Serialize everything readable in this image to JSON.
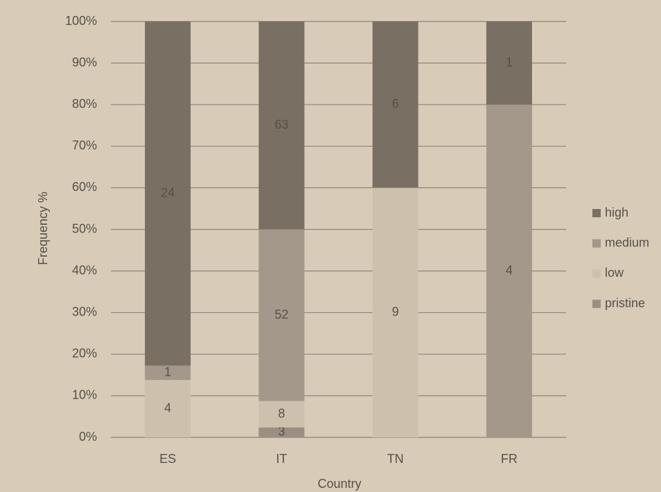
{
  "chart_data": {
    "type": "stacked100",
    "categories": [
      "ES",
      "IT",
      "TN",
      "FR"
    ],
    "series": [
      {
        "name": "pristine",
        "color": "#9a8f82",
        "values": [
          null,
          3,
          null,
          null
        ]
      },
      {
        "name": "low",
        "color": "#cdc1ae",
        "values": [
          4,
          8,
          9,
          null
        ]
      },
      {
        "name": "medium",
        "color": "#a3988a",
        "values": [
          1,
          52,
          null,
          4
        ]
      },
      {
        "name": "high",
        "color": "#7a6f63",
        "values": [
          24,
          63,
          6,
          1
        ]
      }
    ],
    "ylim": [
      0,
      100
    ],
    "yticks": [
      {
        "value": 0,
        "label": "0%"
      },
      {
        "value": 10,
        "label": "10%"
      },
      {
        "value": 20,
        "label": "20%"
      },
      {
        "value": 30,
        "label": "30%"
      },
      {
        "value": 40,
        "label": "40%"
      },
      {
        "value": 50,
        "label": "50%"
      },
      {
        "value": 60,
        "label": "60%"
      },
      {
        "value": 70,
        "label": "70%"
      },
      {
        "value": 80,
        "label": "80%"
      },
      {
        "value": 90,
        "label": "90%"
      },
      {
        "value": 100,
        "label": "100%"
      }
    ],
    "y_label": "Frequency %",
    "x_label": "Country",
    "grid": true,
    "legend": "right"
  }
}
